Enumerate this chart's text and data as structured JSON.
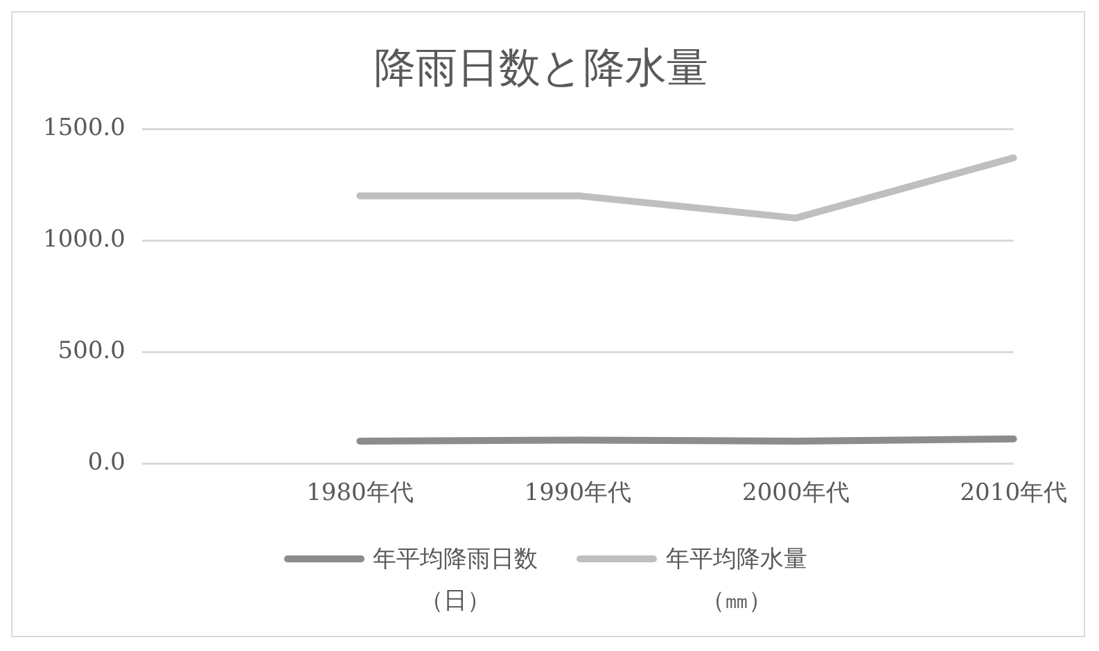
{
  "chart_data": {
    "type": "line",
    "title": "降雨日数と降水量",
    "categories": [
      null,
      "1980年代",
      "1990年代",
      "2000年代",
      "2010年代"
    ],
    "series": [
      {
        "name": "年平均降雨日数（日）",
        "color": "#8c8c8c",
        "values": [
          null,
          100,
          105,
          100,
          110
        ]
      },
      {
        "name": "年平均降水量（㎜）",
        "color": "#bfbfbf",
        "values": [
          null,
          1200,
          1200,
          1100,
          1370
        ]
      }
    ],
    "ylim": [
      0,
      1500
    ],
    "yticks": [
      {
        "value": 0,
        "label": "0.0"
      },
      {
        "value": 500,
        "label": "500.0"
      },
      {
        "value": 1000,
        "label": "1000.0"
      },
      {
        "value": 1500,
        "label": "1500.0"
      }
    ],
    "grid": "y",
    "legend": "bottom",
    "marker": "none",
    "line_style": "solid"
  }
}
